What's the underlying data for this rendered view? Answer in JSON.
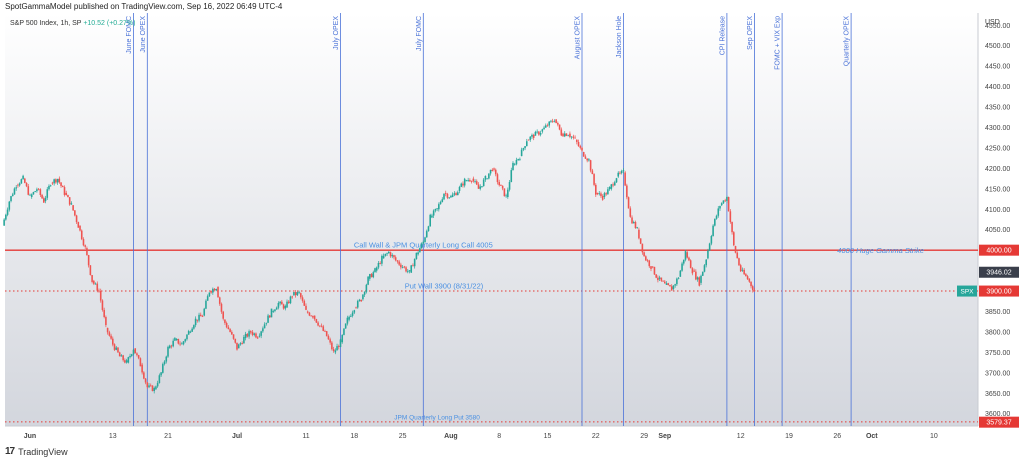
{
  "publisher_line": "SpotGammaModel published on TradingView.com, Sep 16, 2022 06:49 UTC-4",
  "symbol": "S&P 500 Index, 1h, SP",
  "change": "+10.52 (+0.27%)",
  "footer_brand": "TradingView",
  "colors": {
    "up": "#26a69a",
    "down": "#ef5350",
    "event_line": "#4a72d8",
    "level_line": "#e53935",
    "annotation": "#4a90e2",
    "bg_top": "#ffffff",
    "bg_bottom": "#d3d6dd"
  },
  "chart_data": {
    "type": "candlestick",
    "title": "",
    "xlabel": "",
    "ylabel": "",
    "currency_label": "USD",
    "ylim": [
      3570,
      4580
    ],
    "y_ticks": [
      3600,
      3650,
      3700,
      3750,
      3800,
      3850,
      3900,
      3950,
      4000,
      4050,
      4100,
      4150,
      4200,
      4250,
      4300,
      4350,
      4400,
      4450,
      4500,
      4550
    ],
    "x_ticks": [
      {
        "label": "Jun",
        "day": 0,
        "bold": true
      },
      {
        "label": "13",
        "day": 12,
        "bold": false
      },
      {
        "label": "21",
        "day": 20,
        "bold": false
      },
      {
        "label": "Jul",
        "day": 30,
        "bold": true
      },
      {
        "label": "11",
        "day": 40,
        "bold": false
      },
      {
        "label": "18",
        "day": 47,
        "bold": false
      },
      {
        "label": "25",
        "day": 54,
        "bold": false
      },
      {
        "label": "Aug",
        "day": 61,
        "bold": true
      },
      {
        "label": "8",
        "day": 68,
        "bold": false
      },
      {
        "label": "15",
        "day": 75,
        "bold": false
      },
      {
        "label": "22",
        "day": 82,
        "bold": false
      },
      {
        "label": "29",
        "day": 89,
        "bold": false
      },
      {
        "label": "Sep",
        "day": 92,
        "bold": true
      },
      {
        "label": "12",
        "day": 103,
        "bold": false
      },
      {
        "label": "19",
        "day": 110,
        "bold": false
      },
      {
        "label": "26",
        "day": 117,
        "bold": false
      },
      {
        "label": "Oct",
        "day": 122,
        "bold": true
      },
      {
        "label": "10",
        "day": 131,
        "bold": false
      }
    ],
    "events": [
      {
        "label": "June FOMC",
        "day": 15
      },
      {
        "label": "June OPEX",
        "day": 17
      },
      {
        "label": "July OPEX",
        "day": 45
      },
      {
        "label": "July FOMC",
        "day": 57
      },
      {
        "label": "August OPEX",
        "day": 80
      },
      {
        "label": "Jackson Hole",
        "day": 86
      },
      {
        "label": "CPI Release",
        "day": 101
      },
      {
        "label": "Sep OPEX",
        "day": 105
      },
      {
        "label": "FOMC + VIX Exp",
        "day": 109
      },
      {
        "label": "Quarterly OPEX",
        "day": 119
      }
    ],
    "levels": [
      {
        "value": 4000,
        "style": "solid",
        "label": "Call Wall & JPM Quarterly Long Call 4005",
        "label_day": 57
      },
      {
        "value": 3900,
        "style": "dotted",
        "label": "Put Wall 3900 (8/31/22)",
        "label_day": 60
      },
      {
        "value": 3580,
        "style": "dotted",
        "label": "JPM Quarterly Long Put 3580",
        "label_day": 59
      }
    ],
    "side_annotation": {
      "label": "4000 Huge Gamma Strike",
      "value": 4000,
      "day": 117
    },
    "price_badges": [
      {
        "label": "4000.00",
        "value": 4000,
        "kind": "red"
      },
      {
        "label": "3946.02",
        "value": 3946.02,
        "kind": "dark"
      },
      {
        "label": "3900.00",
        "value": 3900,
        "kind": "red"
      },
      {
        "label": "3579.37",
        "value": 3579.37,
        "kind": "red"
      }
    ],
    "last_price": {
      "symbol": "SPX",
      "value": 3900
    },
    "series": [
      {
        "name": "SPX",
        "path": [
          [
            -4,
            4060
          ],
          [
            -3,
            4120
          ],
          [
            -2,
            4160
          ],
          [
            -1,
            4175
          ],
          [
            0,
            4130
          ],
          [
            1,
            4150
          ],
          [
            2,
            4120
          ],
          [
            3,
            4165
          ],
          [
            4,
            4175
          ],
          [
            5,
            4140
          ],
          [
            6,
            4110
          ],
          [
            7,
            4060
          ],
          [
            8,
            4005
          ],
          [
            9,
            3925
          ],
          [
            10,
            3900
          ],
          [
            11,
            3810
          ],
          [
            12,
            3770
          ],
          [
            13,
            3740
          ],
          [
            14,
            3725
          ],
          [
            15,
            3760
          ],
          [
            16,
            3720
          ],
          [
            17,
            3665
          ],
          [
            18,
            3660
          ],
          [
            19,
            3700
          ],
          [
            20,
            3760
          ],
          [
            21,
            3780
          ],
          [
            22,
            3770
          ],
          [
            23,
            3800
          ],
          [
            24,
            3830
          ],
          [
            25,
            3840
          ],
          [
            26,
            3900
          ],
          [
            27,
            3910
          ],
          [
            28,
            3830
          ],
          [
            29,
            3800
          ],
          [
            30,
            3760
          ],
          [
            31,
            3785
          ],
          [
            32,
            3800
          ],
          [
            33,
            3790
          ],
          [
            34,
            3820
          ],
          [
            35,
            3850
          ],
          [
            36,
            3870
          ],
          [
            37,
            3860
          ],
          [
            38,
            3890
          ],
          [
            39,
            3895
          ],
          [
            40,
            3850
          ],
          [
            41,
            3840
          ],
          [
            42,
            3815
          ],
          [
            43,
            3790
          ],
          [
            44,
            3750
          ],
          [
            45,
            3775
          ],
          [
            46,
            3830
          ],
          [
            47,
            3860
          ],
          [
            48,
            3880
          ],
          [
            49,
            3930
          ],
          [
            50,
            3950
          ],
          [
            51,
            3980
          ],
          [
            52,
            3995
          ],
          [
            53,
            3975
          ],
          [
            54,
            3960
          ],
          [
            55,
            3945
          ],
          [
            56,
            3990
          ],
          [
            57,
            4020
          ],
          [
            58,
            4080
          ],
          [
            59,
            4100
          ],
          [
            60,
            4140
          ],
          [
            61,
            4130
          ],
          [
            62,
            4145
          ],
          [
            63,
            4170
          ],
          [
            64,
            4175
          ],
          [
            65,
            4150
          ],
          [
            66,
            4175
          ],
          [
            67,
            4200
          ],
          [
            68,
            4160
          ],
          [
            69,
            4130
          ],
          [
            70,
            4210
          ],
          [
            71,
            4230
          ],
          [
            72,
            4270
          ],
          [
            73,
            4280
          ],
          [
            74,
            4290
          ],
          [
            75,
            4305
          ],
          [
            76,
            4320
          ],
          [
            77,
            4285
          ],
          [
            78,
            4285
          ],
          [
            79,
            4270
          ],
          [
            80,
            4240
          ],
          [
            81,
            4220
          ],
          [
            82,
            4140
          ],
          [
            83,
            4130
          ],
          [
            84,
            4150
          ],
          [
            85,
            4180
          ],
          [
            86,
            4190
          ],
          [
            87,
            4080
          ],
          [
            88,
            4050
          ],
          [
            89,
            3985
          ],
          [
            90,
            3960
          ],
          [
            91,
            3930
          ],
          [
            92,
            3915
          ],
          [
            93,
            3905
          ],
          [
            94,
            3935
          ],
          [
            95,
            3995
          ],
          [
            96,
            3950
          ],
          [
            97,
            3920
          ],
          [
            98,
            3980
          ],
          [
            99,
            4060
          ],
          [
            100,
            4110
          ],
          [
            101,
            4130
          ],
          [
            102,
            4010
          ],
          [
            103,
            3950
          ],
          [
            104,
            3930
          ],
          [
            105,
            3900
          ]
        ]
      }
    ]
  }
}
